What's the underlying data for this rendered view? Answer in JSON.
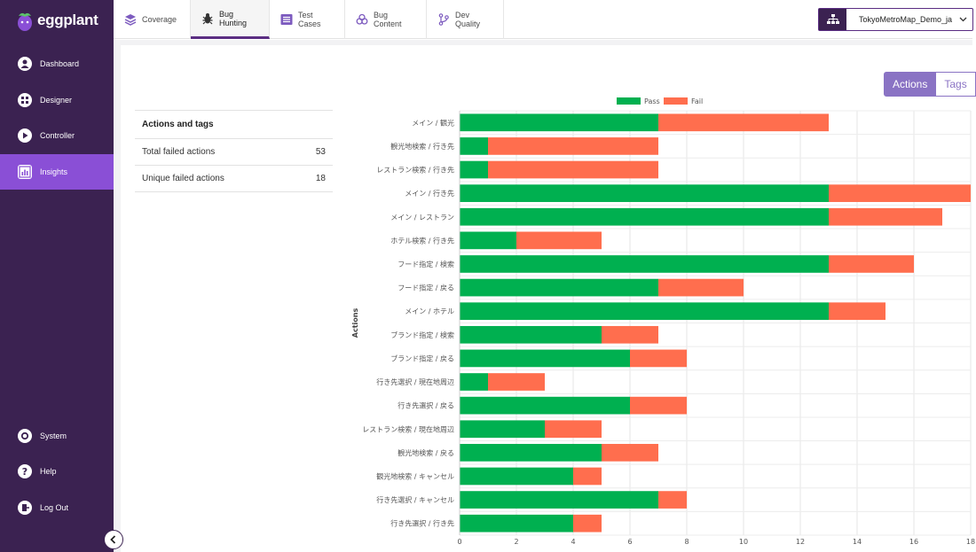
{
  "app": {
    "name": "eggplant"
  },
  "sidebar": {
    "items": [
      {
        "label": "Dashboard",
        "icon": "dashboard-icon",
        "active": false
      },
      {
        "label": "Designer",
        "icon": "designer-icon",
        "active": false
      },
      {
        "label": "Controller",
        "icon": "controller-icon",
        "active": false
      },
      {
        "label": "Insights",
        "icon": "insights-icon",
        "active": true
      }
    ],
    "bottom_items": [
      {
        "label": "System",
        "icon": "gear-icon"
      },
      {
        "label": "Help",
        "icon": "help-icon"
      },
      {
        "label": "Log Out",
        "icon": "logout-icon"
      }
    ]
  },
  "topnav": {
    "tabs": [
      {
        "label": "Coverage",
        "icon": "layers-icon",
        "active": false
      },
      {
        "label": "Bug Hunting",
        "icon": "bug-icon",
        "active": true
      },
      {
        "label": "Test Cases",
        "icon": "list-icon",
        "active": false
      },
      {
        "label": "Bug Content",
        "icon": "biohazard-icon",
        "active": false
      },
      {
        "label": "Dev Quality",
        "icon": "branch-icon",
        "active": false
      }
    ],
    "project": {
      "name": "TokyoMetroMap_Demo_ja",
      "icon": "sitemap-icon"
    }
  },
  "summary": {
    "title": "Actions and tags",
    "rows": [
      {
        "label": "Total failed actions",
        "value": "53"
      },
      {
        "label": "Unique failed actions",
        "value": "18"
      }
    ]
  },
  "view_toggle": {
    "options": [
      "Actions",
      "Tags"
    ],
    "selected": "Actions"
  },
  "colors": {
    "pass": "#00b050",
    "fail": "#ff6e4e",
    "sidebar": "#3b2251",
    "accent": "#8a4fd6"
  },
  "chart_data": {
    "type": "bar",
    "orientation": "horizontal",
    "stacked": true,
    "ylabel": "Actions",
    "xlabel": "",
    "xlim": [
      0,
      18
    ],
    "xticks": [
      0,
      2,
      4,
      6,
      8,
      10,
      12,
      14,
      16,
      18
    ],
    "legend": {
      "placement": "top"
    },
    "grid": true,
    "categories": [
      "メイン / 観光",
      "観光地検索 / 行き先",
      "レストラン検索 / 行き先",
      "メイン / 行き先",
      "メイン / レストラン",
      "ホテル検索 / 行き先",
      "フード指定 / 検索",
      "フード指定 / 戻る",
      "メイン / ホテル",
      "ブランド指定 / 検索",
      "ブランド指定 / 戻る",
      "行き先選択 / 現在地周辺",
      "行き先選択 / 戻る",
      "レストラン検索 / 現在地周辺",
      "観光地検索 / 戻る",
      "観光地検索 / キャンセル",
      "行き先選択 / キャンセル",
      "行き先選択 / 行き先"
    ],
    "series": [
      {
        "name": "Pass",
        "values": [
          7,
          1,
          1,
          13,
          13,
          2,
          13,
          7,
          13,
          5,
          6,
          1,
          6,
          3,
          5,
          4,
          7,
          4
        ]
      },
      {
        "name": "Fail",
        "values": [
          6,
          6,
          6,
          5,
          4,
          3,
          3,
          3,
          2,
          2,
          2,
          2,
          2,
          2,
          2,
          1,
          1,
          1
        ]
      }
    ]
  }
}
